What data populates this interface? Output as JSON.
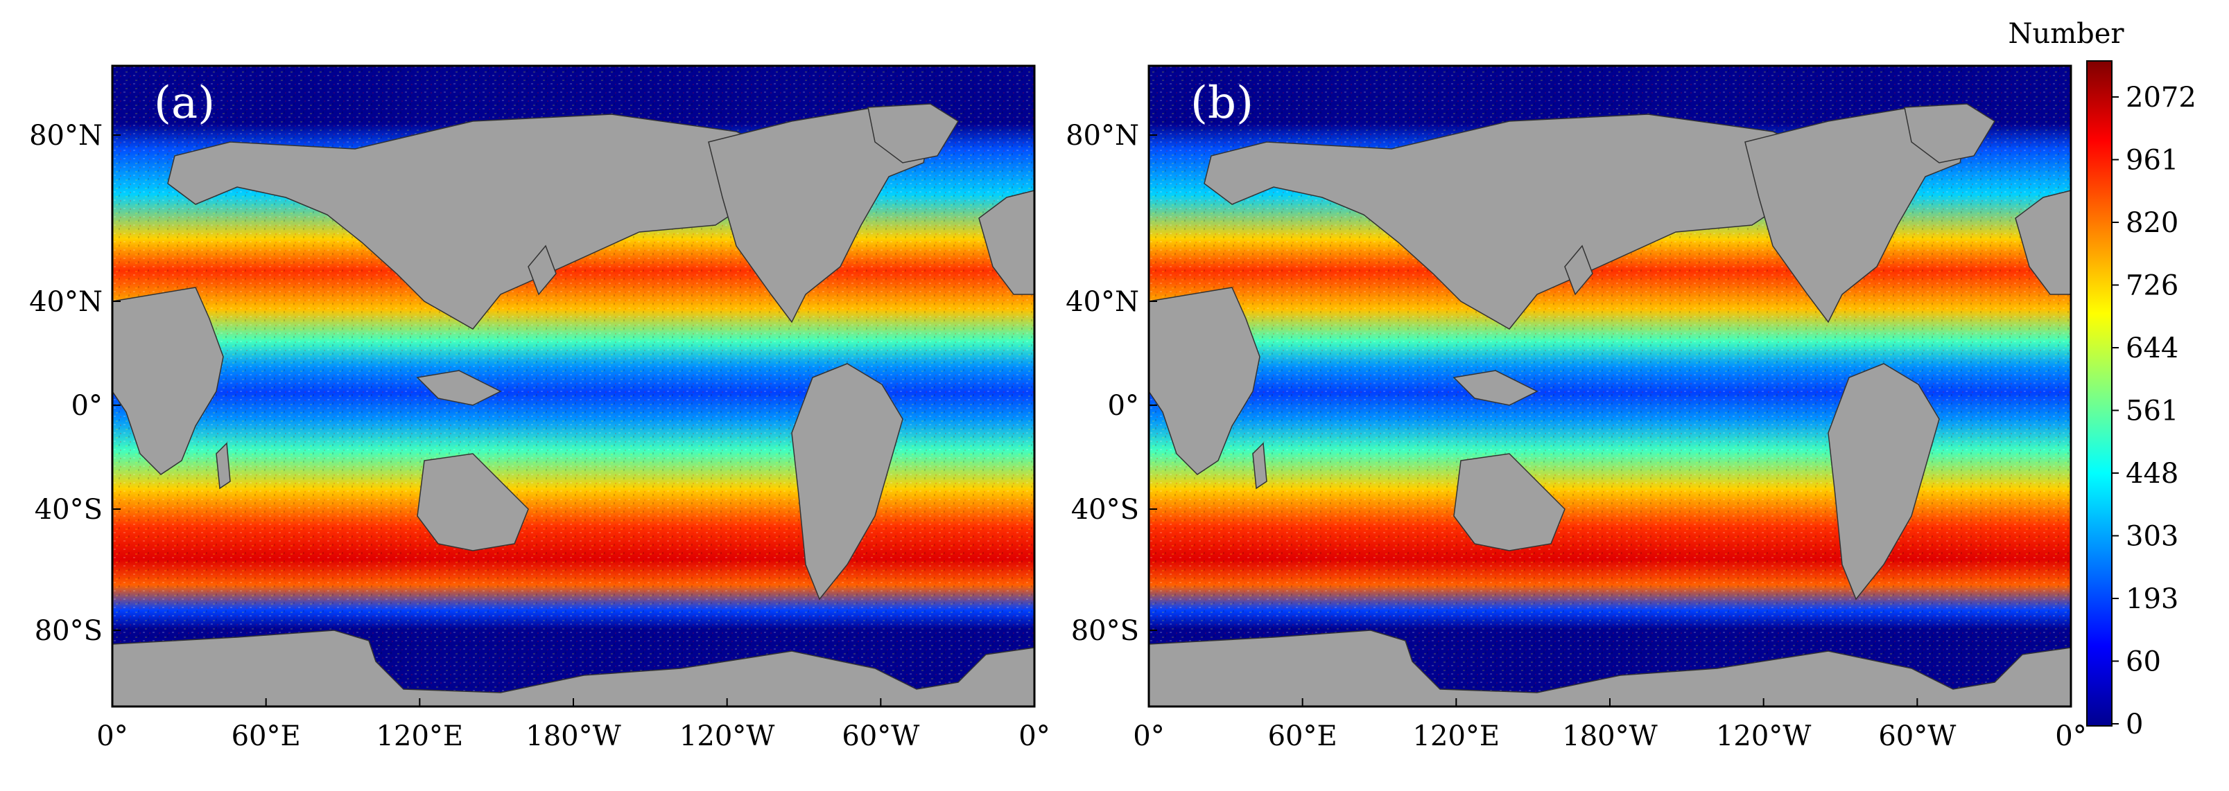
{
  "panels": [
    {
      "label": "(a)"
    },
    {
      "label": "(b)"
    }
  ],
  "axes": {
    "x_ticks": [
      "0°",
      "60°E",
      "120°E",
      "180°W",
      "120°W",
      "60°W",
      "0°"
    ],
    "y_ticks": [
      "80°N",
      "40°N",
      "0°",
      "40°S",
      "80°S"
    ]
  },
  "colorbar": {
    "title": "Number",
    "ticks": [
      "2072",
      "961",
      "820",
      "726",
      "644",
      "561",
      "448",
      "303",
      "193",
      "60",
      "0"
    ],
    "colormap": [
      "#00008f",
      "#0000ff",
      "#0080ff",
      "#00ffff",
      "#80ff80",
      "#ffff00",
      "#ff8000",
      "#ff0000",
      "#800000"
    ]
  },
  "colors": {
    "land": "#a0a0a0",
    "polar_ocean": "#00008f",
    "frame": "#000000"
  }
}
